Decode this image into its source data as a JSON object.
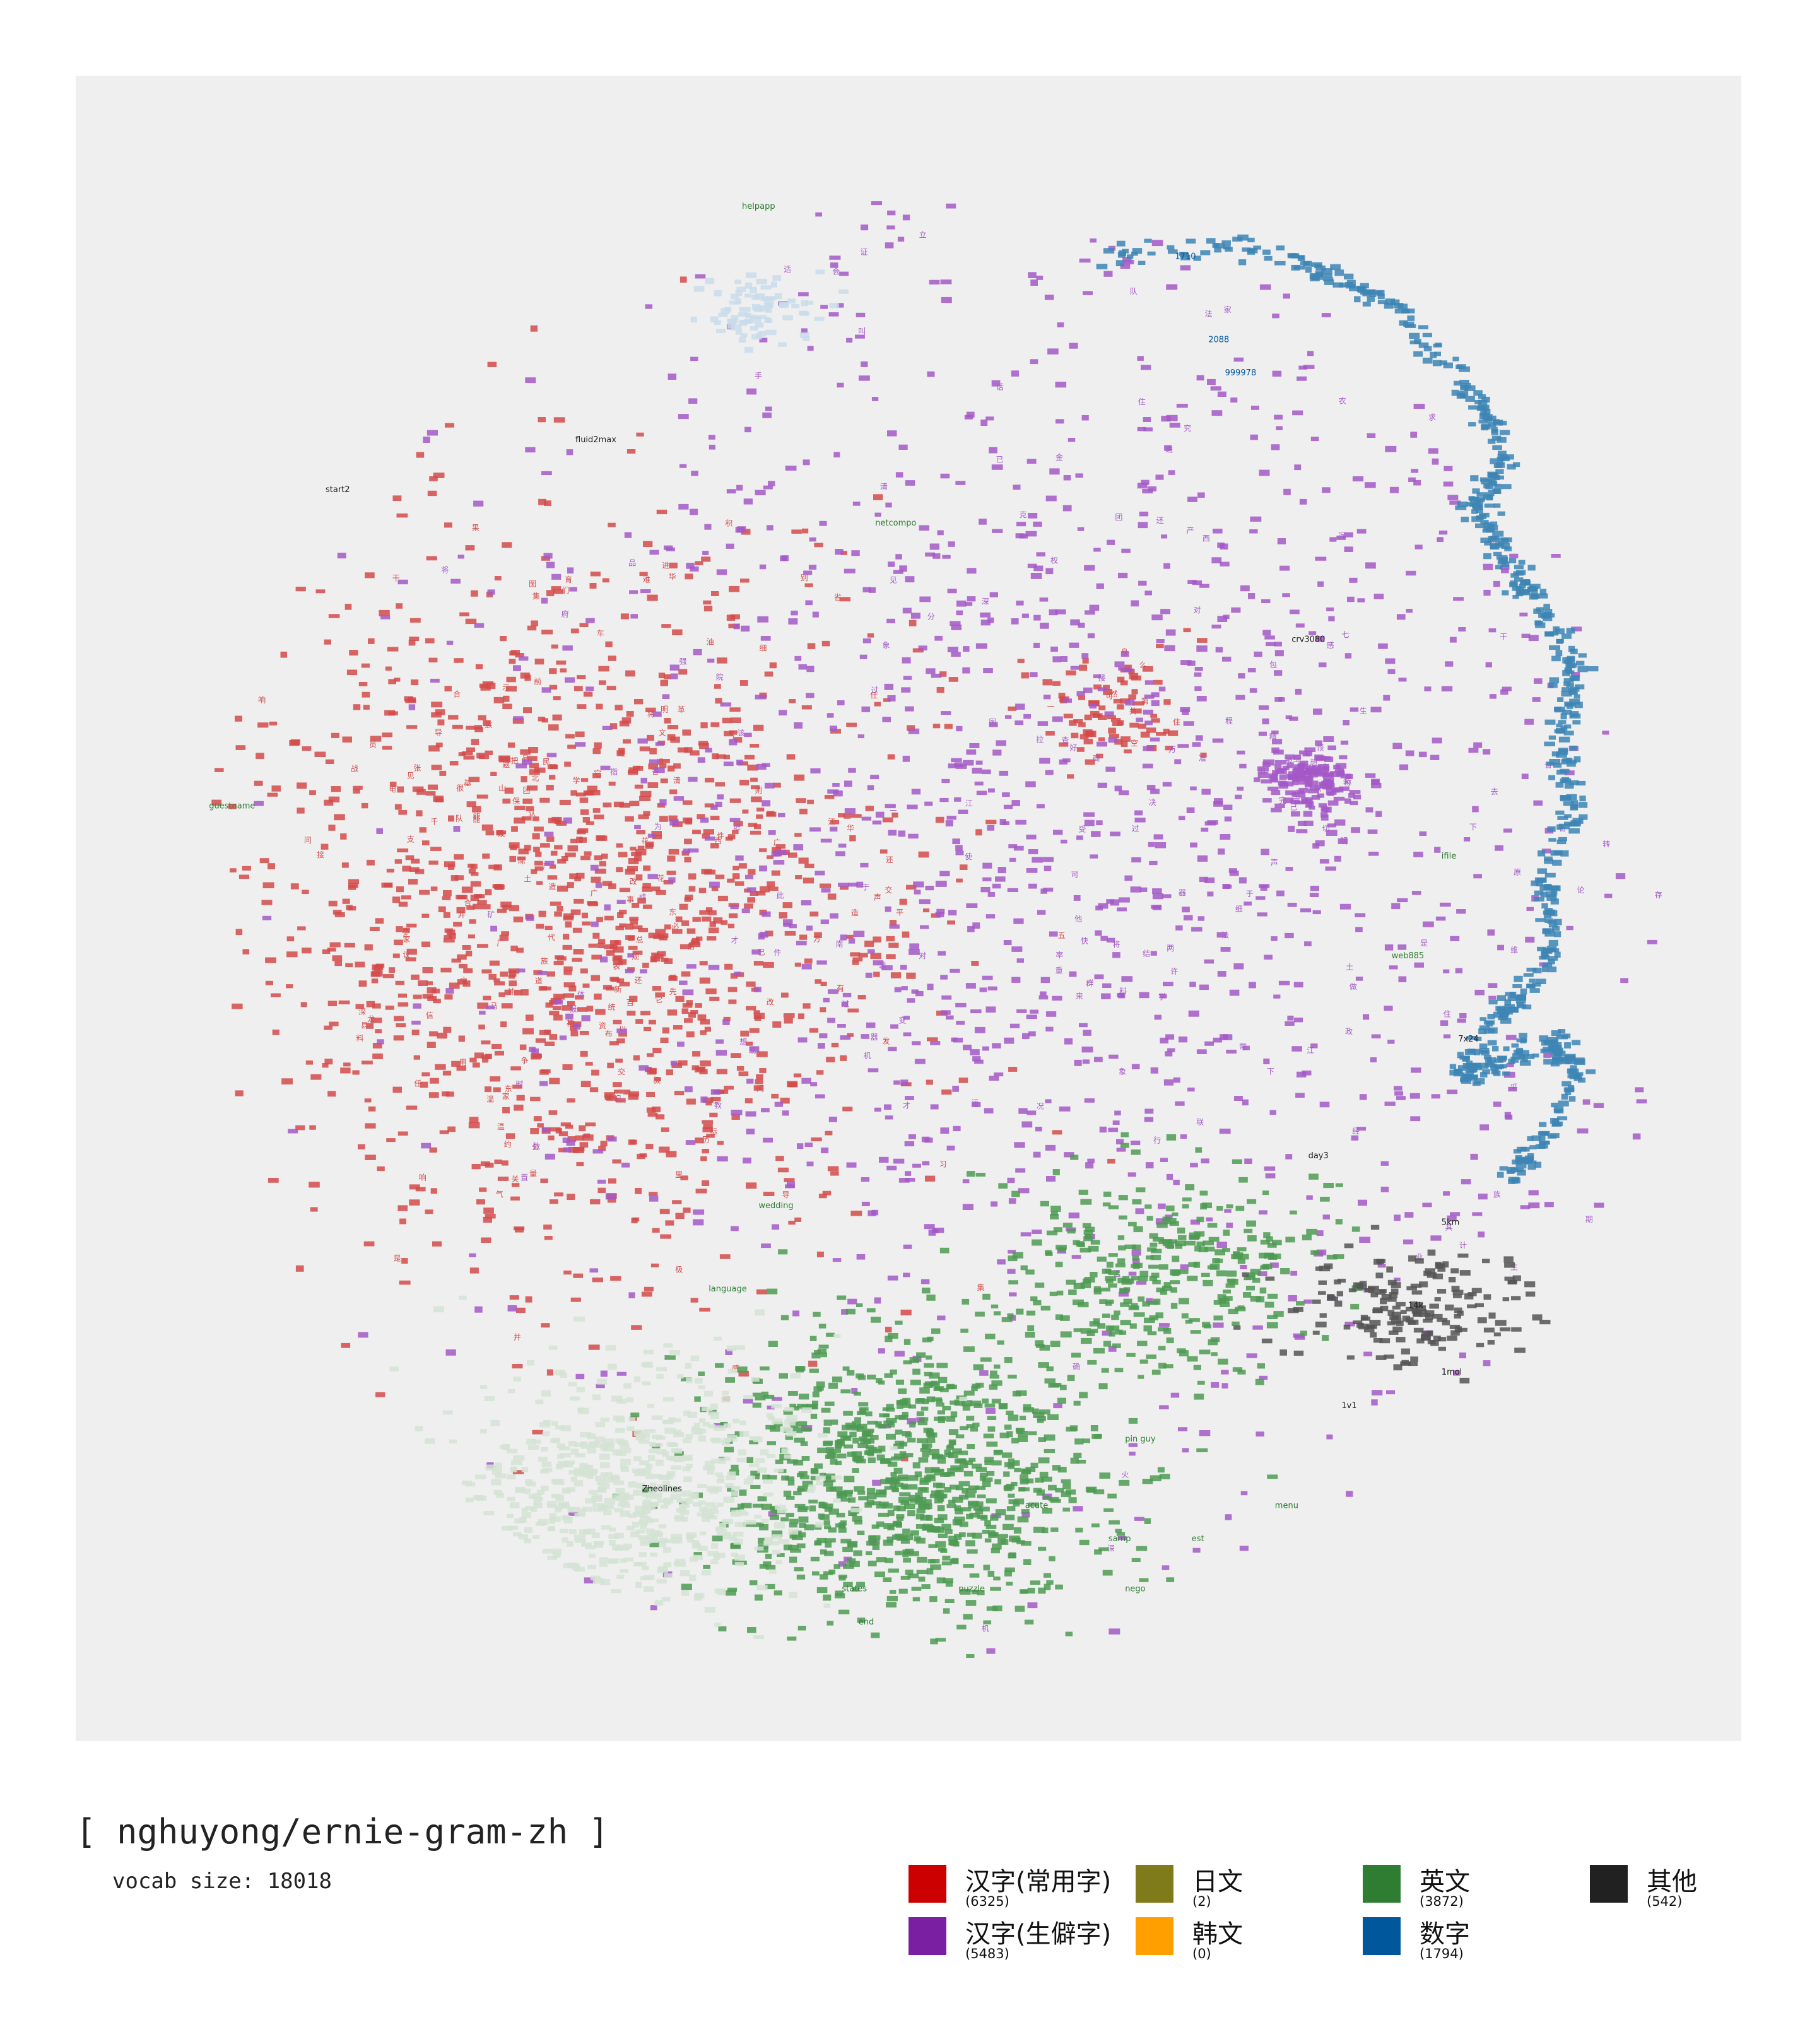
{
  "title": "[ nghuyong/ernie-gram-zh ]",
  "subtitle": "vocab size: 18018",
  "chart_data": {
    "type": "scatter",
    "title": "[ nghuyong/ernie-gram-zh ]",
    "subtitle": "vocab size: 18018",
    "xlabel": "",
    "ylabel": "",
    "grid": false,
    "axes_visible": false,
    "legend_position": "bottom-right",
    "categories": [
      {
        "name": "汉字(常用字)",
        "count": "(6325)",
        "color": "#cc0000"
      },
      {
        "name": "汉字(生僻字)",
        "count": "(5483)",
        "color": "#7a1fa2"
      },
      {
        "name": "日文",
        "count": "(2)",
        "color": "#7f7a1a"
      },
      {
        "name": "韩文",
        "count": "(0)",
        "color": "#ffa000"
      },
      {
        "name": "英文",
        "count": "(3872)",
        "color": "#2e7d32"
      },
      {
        "name": "数字",
        "count": "(1794)",
        "color": "#01579b"
      },
      {
        "name": "其他",
        "count": "(542)",
        "color": "#212121"
      }
    ],
    "clusters": [
      {
        "category": "汉字(常用字)",
        "center": [
          0.3,
          0.5
        ],
        "spread": [
          0.17,
          0.18
        ],
        "color": "#d44a4a",
        "n": 1400
      },
      {
        "category": "汉字(常用字)",
        "center": [
          0.62,
          0.38
        ],
        "spread": [
          0.04,
          0.03
        ],
        "color": "#d44a4a",
        "n": 90
      },
      {
        "category": "汉字(生僻字)",
        "center": [
          0.6,
          0.45
        ],
        "spread": [
          0.3,
          0.32
        ],
        "color": "#a358c7",
        "n": 1500
      },
      {
        "category": "汉字(生僻字)",
        "center": [
          0.74,
          0.42
        ],
        "spread": [
          0.025,
          0.022
        ],
        "color": "#a358c7",
        "n": 160
      },
      {
        "category": "英文",
        "center": [
          0.5,
          0.84
        ],
        "spread": [
          0.1,
          0.07
        ],
        "color": "#4d9a52",
        "n": 900
      },
      {
        "category": "英文",
        "center": [
          0.65,
          0.72
        ],
        "spread": [
          0.08,
          0.05
        ],
        "color": "#4d9a52",
        "n": 350
      },
      {
        "category": "英文",
        "center": [
          0.33,
          0.85
        ],
        "spread": [
          0.09,
          0.06
        ],
        "color": "#d4e3d4",
        "n": 600
      },
      {
        "category": "英文",
        "center": [
          0.41,
          0.14
        ],
        "spread": [
          0.03,
          0.02
        ],
        "color": "#c9dceb",
        "n": 80
      },
      {
        "category": "其他",
        "center": [
          0.8,
          0.74
        ],
        "spread": [
          0.06,
          0.03
        ],
        "color": "#555555",
        "n": 180
      }
    ],
    "number_ribbon": {
      "category": "数字",
      "color": "#3d85b5",
      "path": [
        [
          0.62,
          0.11
        ],
        [
          0.7,
          0.1
        ],
        [
          0.75,
          0.12
        ],
        [
          0.79,
          0.14
        ],
        [
          0.83,
          0.18
        ],
        [
          0.86,
          0.23
        ],
        [
          0.84,
          0.26
        ],
        [
          0.86,
          0.29
        ],
        [
          0.88,
          0.32
        ],
        [
          0.9,
          0.36
        ],
        [
          0.89,
          0.4
        ],
        [
          0.9,
          0.44
        ],
        [
          0.88,
          0.48
        ],
        [
          0.89,
          0.52
        ],
        [
          0.87,
          0.55
        ],
        [
          0.85,
          0.57
        ],
        [
          0.83,
          0.6
        ],
        [
          0.86,
          0.59
        ],
        [
          0.89,
          0.58
        ],
        [
          0.9,
          0.6
        ],
        [
          0.88,
          0.64
        ],
        [
          0.86,
          0.66
        ]
      ],
      "n": 700
    },
    "sample_labels": [
      {
        "text": "helpapp",
        "x": 0.4,
        "y": 0.08,
        "category": "英文"
      },
      {
        "text": "2088",
        "x": 0.68,
        "y": 0.16,
        "category": "数字"
      },
      {
        "text": "999978",
        "x": 0.69,
        "y": 0.18,
        "category": "数字"
      },
      {
        "text": "1710",
        "x": 0.66,
        "y": 0.11,
        "category": "数字"
      },
      {
        "text": "guestname",
        "x": 0.08,
        "y": 0.44,
        "category": "英文"
      },
      {
        "text": "start2",
        "x": 0.15,
        "y": 0.25,
        "category": "其他"
      },
      {
        "text": "fluid2max",
        "x": 0.3,
        "y": 0.22,
        "category": "其他"
      },
      {
        "text": "netcompo",
        "x": 0.48,
        "y": 0.27,
        "category": "英文"
      },
      {
        "text": "crv3080",
        "x": 0.73,
        "y": 0.34,
        "category": "其他"
      },
      {
        "text": "wedding",
        "x": 0.41,
        "y": 0.68,
        "category": "英文"
      },
      {
        "text": "language",
        "x": 0.38,
        "y": 0.73,
        "category": "英文"
      },
      {
        "text": "Zheolines",
        "x": 0.34,
        "y": 0.85,
        "category": "其他"
      },
      {
        "text": "states",
        "x": 0.46,
        "y": 0.91,
        "category": "英文"
      },
      {
        "text": "end",
        "x": 0.47,
        "y": 0.93,
        "category": "英文"
      },
      {
        "text": "puzzle",
        "x": 0.53,
        "y": 0.91,
        "category": "英文"
      },
      {
        "text": "acute",
        "x": 0.57,
        "y": 0.86,
        "category": "英文"
      },
      {
        "text": "menu",
        "x": 0.72,
        "y": 0.86,
        "category": "英文"
      },
      {
        "text": "day3",
        "x": 0.74,
        "y": 0.65,
        "category": "其他"
      },
      {
        "text": "5km",
        "x": 0.82,
        "y": 0.69,
        "category": "其他"
      },
      {
        "text": "14k",
        "x": 0.8,
        "y": 0.74,
        "category": "其他"
      },
      {
        "text": "1mol",
        "x": 0.82,
        "y": 0.78,
        "category": "其他"
      },
      {
        "text": "1v1",
        "x": 0.76,
        "y": 0.8,
        "category": "其他"
      },
      {
        "text": "7x24",
        "x": 0.83,
        "y": 0.58,
        "category": "其他"
      },
      {
        "text": "ifile",
        "x": 0.82,
        "y": 0.47,
        "category": "英文"
      },
      {
        "text": "web885",
        "x": 0.79,
        "y": 0.53,
        "category": "英文"
      },
      {
        "text": "pin guy",
        "x": 0.63,
        "y": 0.82,
        "category": "英文"
      },
      {
        "text": "nego",
        "x": 0.63,
        "y": 0.91,
        "category": "英文"
      },
      {
        "text": "samp",
        "x": 0.62,
        "y": 0.88,
        "category": "英文"
      },
      {
        "text": "est",
        "x": 0.67,
        "y": 0.88,
        "category": "英文"
      }
    ],
    "sample_glyphs": [
      "的",
      "一",
      "是",
      "在",
      "不",
      "了",
      "有",
      "和",
      "人",
      "这",
      "中",
      "大",
      "为",
      "上",
      "个",
      "国",
      "我",
      "以",
      "要",
      "他",
      "时",
      "来",
      "用",
      "们",
      "生",
      "到",
      "作",
      "地",
      "于",
      "出",
      "就",
      "分",
      "对",
      "成",
      "会",
      "可",
      "主",
      "发",
      "年",
      "动",
      "同",
      "工",
      "也",
      "能",
      "下",
      "过",
      "子",
      "说",
      "产",
      "种",
      "面",
      "而",
      "方",
      "后",
      "多",
      "定",
      "行",
      "学",
      "法",
      "所",
      "民",
      "得",
      "经",
      "十",
      "三",
      "之",
      "进",
      "着",
      "等",
      "部",
      "度",
      "家",
      "电",
      "力",
      "里",
      "如",
      "水",
      "化",
      "高",
      "自",
      "二",
      "理",
      "起",
      "小",
      "物",
      "现",
      "实",
      "加",
      "量",
      "都",
      "两",
      "体",
      "制",
      "机",
      "当",
      "使",
      "点",
      "从",
      "业",
      "本",
      "去",
      "把",
      "性",
      "好",
      "应",
      "开",
      "它",
      "合",
      "还",
      "因",
      "由",
      "其",
      "些",
      "然",
      "前",
      "外",
      "天",
      "政",
      "四",
      "日",
      "那",
      "社",
      "义",
      "事",
      "平",
      "形",
      "相",
      "全",
      "表",
      "间",
      "样",
      "与",
      "关",
      "各",
      "重",
      "新",
      "线",
      "内",
      "数",
      "正",
      "心",
      "反",
      "你",
      "明",
      "看",
      "原",
      "又",
      "么",
      "利",
      "比",
      "或",
      "但",
      "质",
      "气",
      "第",
      "向",
      "道",
      "命",
      "此",
      "变",
      "条",
      "只",
      "没",
      "结",
      "解",
      "问",
      "意",
      "建",
      "月",
      "公",
      "无",
      "系",
      "军",
      "很",
      "情",
      "者",
      "最",
      "立",
      "代",
      "想",
      "已",
      "通",
      "并",
      "提",
      "直",
      "题",
      "党",
      "程",
      "展",
      "五",
      "果",
      "料",
      "象",
      "员",
      "革",
      "位",
      "入",
      "常",
      "文",
      "总",
      "次",
      "品",
      "式",
      "活",
      "设",
      "及",
      "管",
      "特",
      "件",
      "长",
      "求",
      "老",
      "头",
      "基",
      "资",
      "边",
      "流",
      "路",
      "级",
      "少",
      "图",
      "山",
      "统",
      "接",
      "知",
      "较",
      "将",
      "组",
      "见",
      "计",
      "别",
      "她",
      "手",
      "角",
      "期",
      "根",
      "论",
      "运",
      "农",
      "指",
      "几",
      "九",
      "区",
      "强",
      "放",
      "决",
      "西",
      "被",
      "干",
      "做",
      "必",
      "战",
      "先",
      "回",
      "则",
      "任",
      "取",
      "据",
      "处",
      "队",
      "南",
      "给",
      "色",
      "光",
      "门",
      "即",
      "保",
      "治",
      "北",
      "造",
      "百",
      "规",
      "热",
      "领",
      "七",
      "海",
      "口",
      "东",
      "导",
      "器",
      "压",
      "志",
      "世",
      "金",
      "增",
      "争",
      "济",
      "阶",
      "油",
      "思",
      "术",
      "极",
      "交",
      "受",
      "联",
      "什",
      "认",
      "六",
      "共",
      "权",
      "收",
      "证",
      "改",
      "清",
      "己",
      "美",
      "再",
      "采",
      "转",
      "更",
      "单",
      "风",
      "切",
      "打",
      "白",
      "教",
      "速",
      "花",
      "带",
      "安",
      "场",
      "身",
      "车",
      "例",
      "真",
      "务",
      "具",
      "万",
      "每",
      "目",
      "至",
      "达",
      "走",
      "积",
      "示",
      "议",
      "声",
      "报",
      "斗",
      "完",
      "类",
      "八",
      "离",
      "华",
      "名",
      "确",
      "才",
      "科",
      "张",
      "信",
      "马",
      "节",
      "话",
      "米",
      "整",
      "空",
      "元",
      "况",
      "今",
      "集",
      "温",
      "传",
      "土",
      "许",
      "步",
      "群",
      "广",
      "石",
      "记",
      "需",
      "段",
      "研",
      "界",
      "拉",
      "林",
      "律",
      "叫",
      "且",
      "究",
      "观",
      "越",
      "织",
      "装",
      "影",
      "算",
      "低",
      "持",
      "音",
      "众",
      "书",
      "布",
      "复",
      "容",
      "儿",
      "须",
      "际",
      "商",
      "非",
      "验",
      "连",
      "断",
      "深",
      "难",
      "近",
      "矿",
      "千",
      "周",
      "委",
      "素",
      "技",
      "备",
      "半",
      "办",
      "青",
      "省",
      "列",
      "习",
      "响",
      "约",
      "支",
      "般",
      "史",
      "感",
      "劳",
      "便",
      "团",
      "往",
      "酸",
      "历",
      "市",
      "克",
      "何",
      "除",
      "消",
      "构",
      "府",
      "称",
      "太",
      "准",
      "精",
      "值",
      "号",
      "率",
      "族",
      "维",
      "划",
      "选",
      "标",
      "写",
      "存",
      "候",
      "毛",
      "亲",
      "快",
      "效",
      "斯",
      "院",
      "查",
      "江",
      "型",
      "眼",
      "王",
      "按",
      "格",
      "养",
      "易",
      "置",
      "派",
      "层",
      "片",
      "始",
      "却",
      "专",
      "状",
      "育",
      "厂",
      "京",
      "识",
      "适",
      "属",
      "圆",
      "包",
      "火",
      "住",
      "调",
      "满",
      "县",
      "局",
      "照",
      "参",
      "红",
      "细",
      "引",
      "听",
      "该",
      "铁",
      "价",
      "严",
      "龙",
      "飞"
    ]
  }
}
